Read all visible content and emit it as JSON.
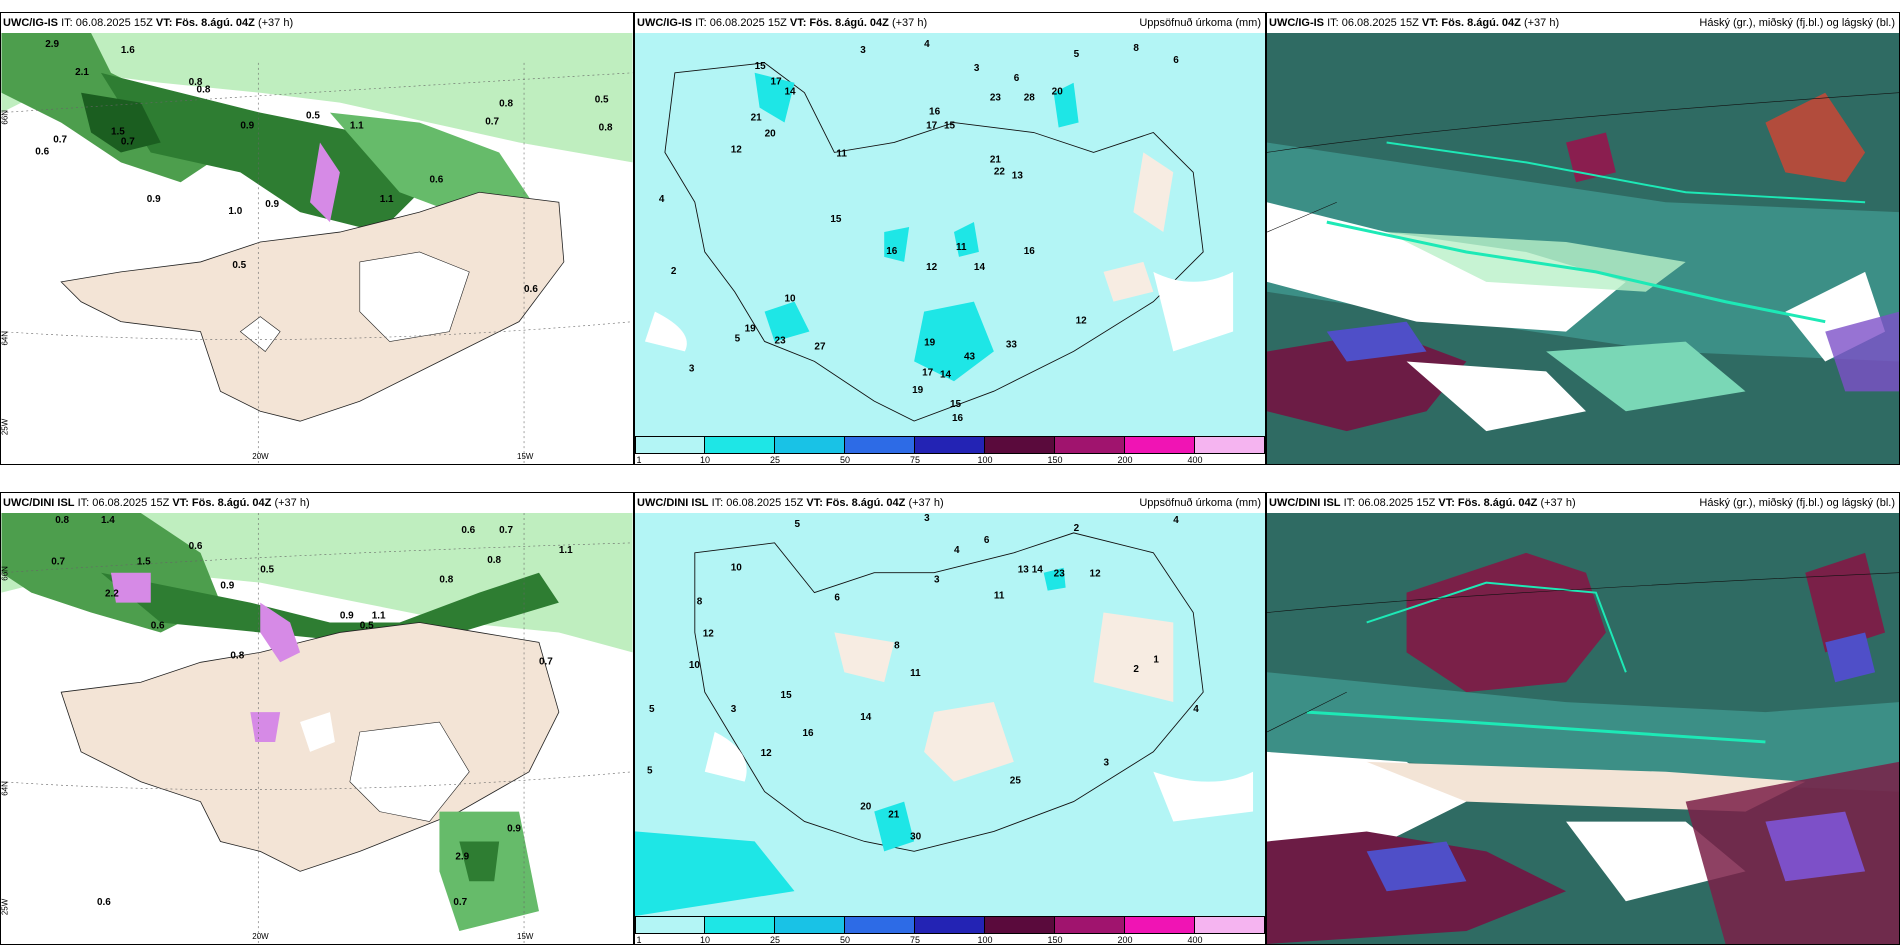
{
  "panels": [
    {
      "model": "UWC/IG-IS",
      "it": "IT: 06.08.2025 15Z",
      "vt_label": "VT:",
      "vt": "Fös. 8.ágú. 04Z",
      "lead": "(+37 h)",
      "right": ""
    },
    {
      "model": "UWC/IG-IS",
      "it": "IT: 06.08.2025 15Z",
      "vt_label": "VT:",
      "vt": "Fös. 8.ágú. 04Z",
      "lead": "(+37 h)",
      "right": "Uppsöfnuð úrkoma (mm)"
    },
    {
      "model": "UWC/IG-IS",
      "it": "IT: 06.08.2025 15Z",
      "vt_label": "VT:",
      "vt": "Fös. 8.ágú. 04Z",
      "lead": "(+37 h)",
      "right": "Háský (gr.), miðský (fj.bl.) og lágský (bl.)"
    },
    {
      "model": "UWC/DINI ISL",
      "it": "IT: 06.08.2025 15Z",
      "vt_label": "VT:",
      "vt": "Fös. 8.ágú. 04Z",
      "lead": "(+37 h)",
      "right": ""
    },
    {
      "model": "UWC/DINI ISL",
      "it": "IT: 06.08.2025 15Z",
      "vt_label": "VT:",
      "vt": "Fös. 8.ágú. 04Z",
      "lead": "(+37 h)",
      "right": "Uppsöfnuð úrkoma (mm)"
    },
    {
      "model": "UWC/DINI ISL",
      "it": "IT: 06.08.2025 15Z",
      "vt_label": "VT:",
      "vt": "Fös. 8.ágú. 04Z",
      "lead": "(+37 h)",
      "right": "Háský (gr.), miðský (fj.bl.) og lágský (bl.)"
    }
  ],
  "axes": {
    "lon_20": "20W",
    "lon_15": "15W",
    "lat_66": "66N",
    "lat_64": "64N",
    "lon_25": "25W",
    "lat_66b": "66N",
    "lat_64b": "64N"
  },
  "colorbar": {
    "ticks": [
      "1",
      "10",
      "25",
      "50",
      "75",
      "100",
      "150",
      "200",
      "400"
    ],
    "colors": [
      "#b3f5f5",
      "#1ee6e6",
      "#19c2e6",
      "#2d6be6",
      "#2323b4",
      "#5a0a3c",
      "#a0146e",
      "#f014b4",
      "#f5b4f0"
    ]
  },
  "precip_labels_top": [
    "3",
    "4",
    "3",
    "5",
    "6",
    "8",
    "6",
    "15",
    "17",
    "14",
    "16",
    "20",
    "21",
    "15",
    "12",
    "20",
    "11",
    "28",
    "23",
    "17",
    "21",
    "22",
    "13",
    "15",
    "16",
    "12",
    "11",
    "14",
    "16",
    "19",
    "23",
    "27",
    "43",
    "33",
    "14",
    "17",
    "19",
    "15",
    "16",
    "19",
    "10",
    "12",
    "3",
    "2",
    "4",
    "5"
  ],
  "precip_labels_bottom": [
    "5",
    "3",
    "6",
    "2",
    "4",
    "10",
    "8",
    "12",
    "13",
    "14",
    "23",
    "12",
    "5",
    "3",
    "8",
    "11",
    "10",
    "3",
    "4",
    "6",
    "15",
    "12",
    "16",
    "14",
    "20",
    "21",
    "30",
    "25",
    "3",
    "5",
    "11",
    "1",
    "2",
    "4"
  ],
  "wind_labels_top": [
    "2.9",
    "2.1",
    "1.6",
    "0.8",
    "0.7",
    "0.6",
    "0.5",
    "0.9",
    "1.1",
    "0.8",
    "0.7",
    "1.0",
    "0.9",
    "0.5",
    "0.6",
    "0.8",
    "1.5",
    "0.7",
    "0.9",
    "1.1",
    "0.6",
    "0.5",
    "0.8"
  ],
  "wind_labels_bottom": [
    "0.8",
    "0.7",
    "0.6",
    "1.4",
    "2.2",
    "0.9",
    "1.5",
    "0.6",
    "0.8",
    "0.7",
    "0.5",
    "0.9",
    "1.1",
    "0.6",
    "0.8",
    "0.7",
    "2.9",
    "0.6",
    "0.7",
    "0.9",
    "1.1",
    "0.8",
    "0.5"
  ]
}
